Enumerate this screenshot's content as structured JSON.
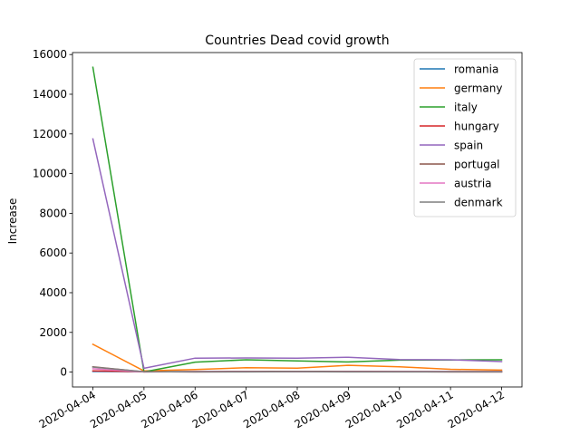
{
  "chart_data": {
    "type": "line",
    "title": "Countries Dead covid growth",
    "xlabel": "",
    "ylabel": "Increase",
    "x": [
      "2020-04-04",
      "2020-04-05",
      "2020-04-06",
      "2020-04-07",
      "2020-04-08",
      "2020-04-09",
      "2020-04-10",
      "2020-04-11",
      "2020-04-12"
    ],
    "ylim": [
      -750,
      16100
    ],
    "yticks": [
      0,
      2000,
      4000,
      6000,
      8000,
      10000,
      12000,
      14000,
      16000
    ],
    "grid": false,
    "legend_position": "top-right",
    "series": [
      {
        "name": "romania",
        "color": "#1f77b4",
        "values": [
          30,
          20,
          20,
          20,
          20,
          20,
          20,
          20,
          20
        ]
      },
      {
        "name": "germany",
        "color": "#ff7f0e",
        "values": [
          1400,
          60,
          130,
          220,
          200,
          340,
          270,
          140,
          100
        ]
      },
      {
        "name": "italy",
        "color": "#2ca02c",
        "values": [
          15360,
          10,
          500,
          620,
          560,
          510,
          600,
          610,
          620
        ]
      },
      {
        "name": "hungary",
        "color": "#d62728",
        "values": [
          60,
          20,
          10,
          20,
          20,
          30,
          20,
          10,
          10
        ]
      },
      {
        "name": "spain",
        "color": "#9467bd",
        "values": [
          11750,
          190,
          700,
          710,
          700,
          750,
          630,
          620,
          530
        ]
      },
      {
        "name": "portugal",
        "color": "#8c564b",
        "values": [
          270,
          10,
          30,
          40,
          40,
          40,
          30,
          30,
          30
        ]
      },
      {
        "name": "austria",
        "color": "#e377c2",
        "values": [
          170,
          10,
          20,
          20,
          20,
          20,
          20,
          20,
          20
        ]
      },
      {
        "name": "denmark",
        "color": "#7f7f7f",
        "values": [
          250,
          20,
          10,
          10,
          20,
          10,
          10,
          10,
          10
        ]
      }
    ]
  }
}
